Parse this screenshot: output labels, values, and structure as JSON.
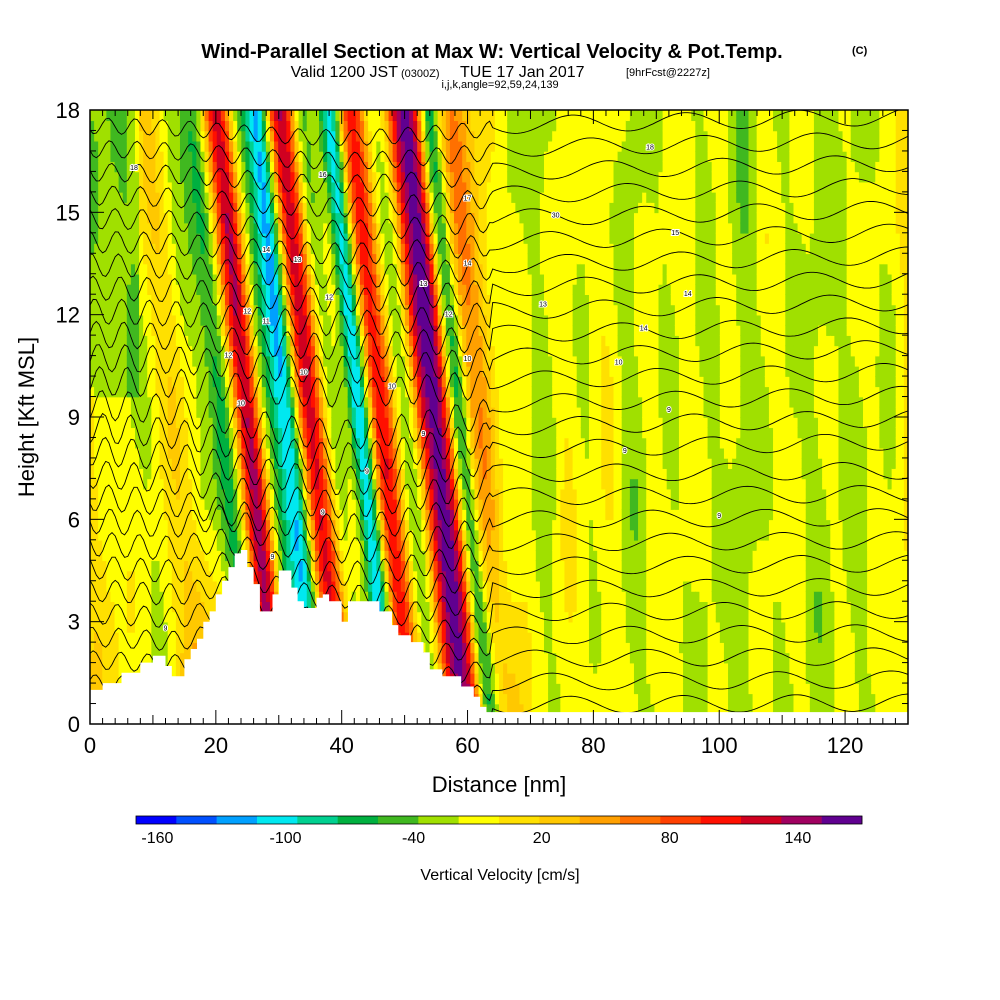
{
  "title": {
    "main": "Wind-Parallel Section at Max W: Vertical Velocity & Pot.Temp.",
    "copyright": "(C)",
    "sub_a": "Valid 1200 JST",
    "sub_b": "(0300Z)",
    "sub_c": "TUE 17 Jan 2017",
    "sub_d": "[9hrFcst@2227z]",
    "params": "i,j,k,angle=92,59,24,139"
  },
  "chart_data": {
    "type": "heatmap",
    "xlabel": "Distance [nm]",
    "ylabel": "Height [Kft MSL]",
    "xlim": [
      0,
      130
    ],
    "ylim": [
      0,
      18
    ],
    "x_ticks": [
      0,
      20,
      40,
      60,
      80,
      100,
      120
    ],
    "y_ticks": [
      0,
      3,
      6,
      9,
      12,
      15,
      18
    ],
    "x_tick_labels": [
      "0",
      "20",
      "40",
      "60",
      "80",
      "100",
      "120"
    ],
    "y_tick_labels": [
      "0",
      "3",
      "6",
      "9",
      "12",
      "15",
      "18"
    ],
    "field": "Vertical Velocity",
    "background_value": 10,
    "vertical_bands": [
      {
        "x": 5,
        "w": 4,
        "v": -20
      },
      {
        "x": 11,
        "w": 5,
        "v": -20
      },
      {
        "x": 14,
        "w": 3,
        "v": 30
      },
      {
        "x": 18,
        "w": 4,
        "v": -35
      },
      {
        "x": 21,
        "w": 2,
        "v": -55
      },
      {
        "x": 25,
        "w": 2.2,
        "v": 130
      },
      {
        "x": 28,
        "w": 2,
        "v": -50
      },
      {
        "x": 31.5,
        "w": 2.2,
        "v": -135
      },
      {
        "x": 35,
        "w": 2.6,
        "v": 125
      },
      {
        "x": 38.5,
        "w": 2,
        "v": -55
      },
      {
        "x": 43,
        "w": 1.8,
        "v": -130
      },
      {
        "x": 46,
        "w": 2.4,
        "v": 100
      },
      {
        "x": 50,
        "w": 2,
        "v": -45
      },
      {
        "x": 53.5,
        "w": 2,
        "v": 90
      },
      {
        "x": 56,
        "w": 2.2,
        "v": 120
      },
      {
        "x": 58.5,
        "w": 1.8,
        "v": -100
      },
      {
        "x": 62,
        "w": 3,
        "v": 45
      },
      {
        "x": 66,
        "w": 2.5,
        "v": -30
      },
      {
        "x": 72,
        "w": 3,
        "v": -35
      },
      {
        "x": 79,
        "w": 3,
        "v": -25
      },
      {
        "x": 86,
        "w": 3,
        "v": -35
      },
      {
        "x": 92,
        "w": 3.5,
        "v": -25
      },
      {
        "x": 98,
        "w": 3,
        "v": -30
      },
      {
        "x": 104,
        "w": 3,
        "v": -40
      },
      {
        "x": 110,
        "w": 3,
        "v": -25
      },
      {
        "x": 116,
        "w": 3.5,
        "v": -35
      },
      {
        "x": 122,
        "w": 3,
        "v": -30
      },
      {
        "x": 127,
        "w": 2.5,
        "v": -25
      }
    ],
    "terrain": [
      [
        0,
        1.0
      ],
      [
        2,
        1.0
      ],
      [
        2,
        1.2
      ],
      [
        5,
        1.2
      ],
      [
        5,
        1.5
      ],
      [
        8,
        1.5
      ],
      [
        8,
        1.8
      ],
      [
        10,
        1.8
      ],
      [
        10,
        2.0
      ],
      [
        12,
        2.0
      ],
      [
        12,
        1.7
      ],
      [
        13,
        1.7
      ],
      [
        13,
        1.4
      ],
      [
        15,
        1.4
      ],
      [
        15,
        1.9
      ],
      [
        16,
        1.9
      ],
      [
        16,
        2.2
      ],
      [
        17,
        2.2
      ],
      [
        17,
        2.5
      ],
      [
        18,
        2.5
      ],
      [
        18,
        3.0
      ],
      [
        19,
        3.0
      ],
      [
        19,
        3.3
      ],
      [
        20,
        3.3
      ],
      [
        20,
        3.8
      ],
      [
        21,
        3.8
      ],
      [
        21,
        4.2
      ],
      [
        22,
        4.2
      ],
      [
        22,
        4.6
      ],
      [
        23,
        4.6
      ],
      [
        23,
        5.0
      ],
      [
        24,
        5.0
      ],
      [
        24,
        5.1
      ],
      [
        25,
        5.1
      ],
      [
        25,
        4.6
      ],
      [
        26,
        4.6
      ],
      [
        26,
        4.1
      ],
      [
        27,
        4.1
      ],
      [
        27,
        3.3
      ],
      [
        29,
        3.3
      ],
      [
        29,
        3.8
      ],
      [
        30,
        3.8
      ],
      [
        30,
        4.5
      ],
      [
        32,
        4.5
      ],
      [
        32,
        4.0
      ],
      [
        33,
        4.0
      ],
      [
        33,
        3.6
      ],
      [
        34,
        3.6
      ],
      [
        34,
        3.4
      ],
      [
        36,
        3.4
      ],
      [
        36,
        3.7
      ],
      [
        37,
        3.7
      ],
      [
        37,
        3.8
      ],
      [
        38,
        3.8
      ],
      [
        38,
        3.6
      ],
      [
        40,
        3.6
      ],
      [
        40,
        3.0
      ],
      [
        41,
        3.0
      ],
      [
        41,
        3.6
      ],
      [
        46,
        3.6
      ],
      [
        46,
        3.3
      ],
      [
        48,
        3.3
      ],
      [
        48,
        2.9
      ],
      [
        49,
        2.9
      ],
      [
        49,
        2.6
      ],
      [
        51,
        2.6
      ],
      [
        51,
        2.4
      ],
      [
        53,
        2.4
      ],
      [
        53,
        2.1
      ],
      [
        54,
        2.1
      ],
      [
        54,
        1.6
      ],
      [
        56,
        1.6
      ],
      [
        56,
        1.4
      ],
      [
        59,
        1.4
      ],
      [
        59,
        1.1
      ],
      [
        61,
        1.1
      ],
      [
        61,
        0.8
      ],
      [
        62,
        0.8
      ],
      [
        62,
        0.5
      ],
      [
        63,
        0.5
      ],
      [
        63,
        0.35
      ],
      [
        130,
        0.35
      ]
    ],
    "contour_labels": [
      "9",
      "9",
      "9",
      "9",
      "9",
      "9",
      "9",
      "9",
      "10",
      "10",
      "10",
      "10",
      "10",
      "11",
      "12",
      "12",
      "12",
      "12",
      "13",
      "13",
      "13",
      "14",
      "14",
      "14",
      "14",
      "15",
      "16",
      "17",
      "18",
      "18",
      "30"
    ],
    "colorbar": {
      "title": "Vertical Velocity [cm/s]",
      "min": -170,
      "max": 170,
      "tick_values": [
        -160,
        -100,
        -40,
        20,
        80,
        140
      ],
      "tick_labels": [
        "-160",
        "-100",
        "-40",
        "20",
        "80",
        "140"
      ],
      "colors": [
        "#0000ff",
        "#0050ff",
        "#00a0ff",
        "#00e8f0",
        "#00d090",
        "#00b040",
        "#40b820",
        "#a0e000",
        "#ffff00",
        "#ffe000",
        "#ffc800",
        "#ffa000",
        "#ff7000",
        "#ff4000",
        "#ff1000",
        "#d00020",
        "#a00060",
        "#600090"
      ]
    }
  }
}
